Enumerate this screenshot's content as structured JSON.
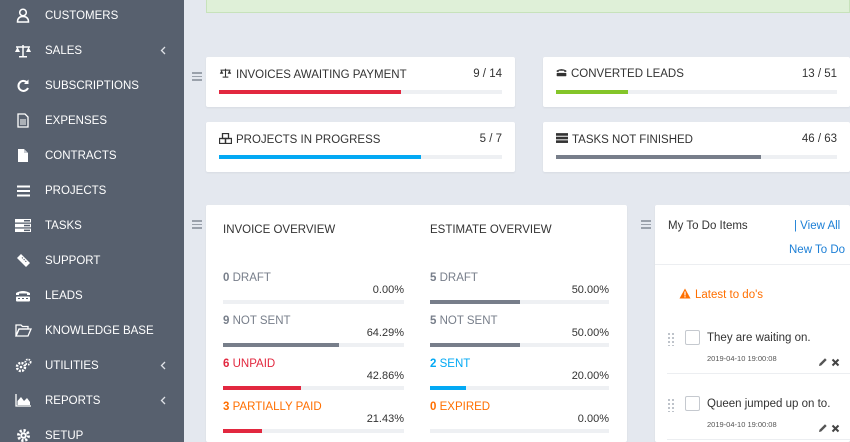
{
  "sidebar": {
    "items": [
      {
        "label": "CUSTOMERS",
        "icon": "user-icon"
      },
      {
        "label": "SALES",
        "icon": "balance-scale-icon",
        "submenu": true
      },
      {
        "label": "SUBSCRIPTIONS",
        "icon": "refresh-icon"
      },
      {
        "label": "EXPENSES",
        "icon": "file-text-icon"
      },
      {
        "label": "CONTRACTS",
        "icon": "file-icon"
      },
      {
        "label": "PROJECTS",
        "icon": "bars-icon"
      },
      {
        "label": "TASKS",
        "icon": "tasks-icon"
      },
      {
        "label": "SUPPORT",
        "icon": "ticket-icon"
      },
      {
        "label": "LEADS",
        "icon": "tty-icon"
      },
      {
        "label": "KNOWLEDGE BASE",
        "icon": "folder-open-icon"
      },
      {
        "label": "UTILITIES",
        "icon": "cogs-icon",
        "submenu": true
      },
      {
        "label": "REPORTS",
        "icon": "area-chart-icon",
        "submenu": true
      },
      {
        "label": "SETUP",
        "icon": "cog-icon"
      }
    ]
  },
  "stats": [
    {
      "title": "INVOICES AWAITING PAYMENT",
      "count": "9 / 14",
      "progress": 0.643,
      "color": "#e2283f",
      "icon": "balance-scale-icon"
    },
    {
      "title": "CONVERTED LEADS",
      "count": "13 / 51",
      "progress": 0.255,
      "color": "#84c529",
      "icon": "tty-icon"
    },
    {
      "title": "PROJECTS IN PROGRESS",
      "count": "5 / 7",
      "progress": 0.714,
      "color": "#03a9f4",
      "icon": "cubes-icon"
    },
    {
      "title": "TASKS NOT FINISHED",
      "count": "46 / 63",
      "progress": 0.73,
      "color": "#777e8a",
      "icon": "tasks-icon"
    }
  ],
  "invoice_overview": {
    "heading": "INVOICE OVERVIEW",
    "rows": [
      {
        "num": "0",
        "label": "DRAFT",
        "pct": "0.00%",
        "progress": 0.0,
        "color": "#777e8a"
      },
      {
        "num": "9",
        "label": "NOT SENT",
        "pct": "64.29%",
        "progress": 0.6429,
        "color": "#777e8a"
      },
      {
        "num": "6",
        "label": "UNPAID",
        "pct": "42.86%",
        "progress": 0.4286,
        "color": "#e2283f"
      },
      {
        "num": "3",
        "label": "PARTIALLY PAID",
        "pct": "21.43%",
        "progress": 0.2143,
        "color": "#e2283f",
        "text_color": "#ff6f00"
      }
    ]
  },
  "estimate_overview": {
    "heading": "ESTIMATE OVERVIEW",
    "rows": [
      {
        "num": "5",
        "label": "DRAFT",
        "pct": "50.00%",
        "progress": 0.5,
        "color": "#777e8a"
      },
      {
        "num": "5",
        "label": "NOT SENT",
        "pct": "50.00%",
        "progress": 0.5,
        "color": "#777e8a"
      },
      {
        "num": "2",
        "label": "SENT",
        "pct": "20.00%",
        "progress": 0.2,
        "color": "#03a9f4"
      },
      {
        "num": "0",
        "label": "EXPIRED",
        "pct": "0.00%",
        "progress": 0.0,
        "color": "#ff6f00",
        "text_color": "#ff6f00"
      }
    ]
  },
  "todo": {
    "title": "My To Do Items",
    "view_all": "| View All",
    "new_todo": "New To Do",
    "latest_label": "Latest to do's",
    "items": [
      {
        "text": "They are waiting on.",
        "date": "2019-04-10 19:00:08"
      },
      {
        "text": "Queen jumped up on to.",
        "date": "2019-04-10 19:00:08"
      }
    ]
  }
}
